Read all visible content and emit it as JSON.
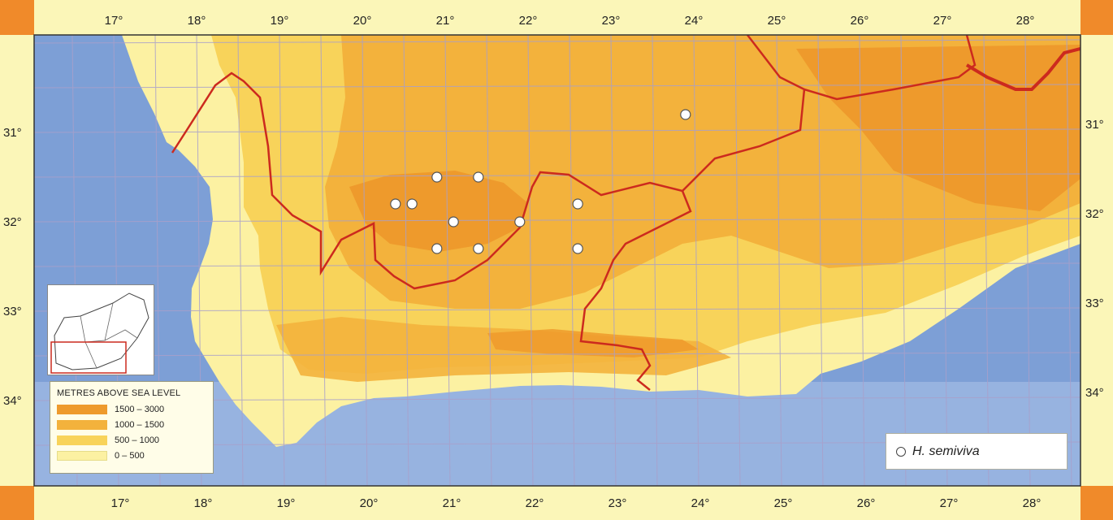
{
  "longitude_labels": [
    "17°",
    "18°",
    "19°",
    "20°",
    "21°",
    "22°",
    "23°",
    "24°",
    "25°",
    "26°",
    "27°",
    "28°"
  ],
  "latitude_labels": [
    "31°",
    "32°",
    "33°",
    "34°"
  ],
  "legend": {
    "title": "METRES ABOVE SEA LEVEL",
    "items": [
      {
        "label": "1500 – 3000",
        "color": "#ee9a2c"
      },
      {
        "label": "1000 – 1500",
        "color": "#f3b23c"
      },
      {
        "label": "500 – 1000",
        "color": "#f8d35a"
      },
      {
        "label": "0 – 500",
        "color": "#fcf1a2"
      }
    ]
  },
  "species_key": {
    "label": "H. semiviva"
  },
  "colors": {
    "ocean": "#7d9fd6",
    "border": "#cc2a1e",
    "grid": "#a9a0ca",
    "frame": "#fbf6b8",
    "corner": "#f08a2a"
  },
  "occurrences": [
    {
      "lon": 23.9,
      "lat": 30.8
    },
    {
      "lon": 20.9,
      "lat": 31.5
    },
    {
      "lon": 21.4,
      "lat": 31.5
    },
    {
      "lon": 20.4,
      "lat": 31.8
    },
    {
      "lon": 20.6,
      "lat": 31.8
    },
    {
      "lon": 22.6,
      "lat": 31.8
    },
    {
      "lon": 21.1,
      "lat": 32.0
    },
    {
      "lon": 21.9,
      "lat": 32.0
    },
    {
      "lon": 20.9,
      "lat": 32.3
    },
    {
      "lon": 21.4,
      "lat": 32.3
    },
    {
      "lon": 22.6,
      "lat": 32.3
    }
  ]
}
